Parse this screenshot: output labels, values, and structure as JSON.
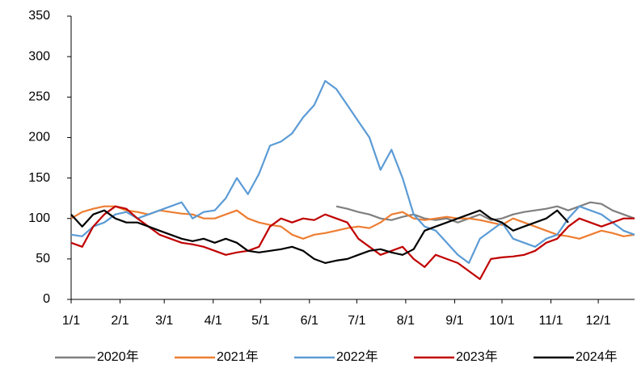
{
  "chart_data": {
    "type": "line",
    "x": [
      0,
      7,
      14,
      21,
      28,
      35,
      42,
      49,
      56,
      63,
      70,
      77,
      84,
      91,
      98,
      105,
      112,
      119,
      126,
      133,
      140,
      147,
      154,
      161,
      168,
      175,
      182,
      189,
      196,
      203,
      210,
      217,
      224,
      231,
      238,
      245,
      252,
      259,
      266,
      273,
      280,
      287,
      294,
      301,
      308,
      315,
      322,
      329,
      336,
      343,
      350,
      357
    ],
    "xlim": [
      0,
      357
    ],
    "xticks": [
      {
        "value": 0,
        "label": "1/1"
      },
      {
        "value": 31,
        "label": "2/1"
      },
      {
        "value": 59,
        "label": "3/1"
      },
      {
        "value": 90,
        "label": "4/1"
      },
      {
        "value": 120,
        "label": "5/1"
      },
      {
        "value": 151,
        "label": "6/1"
      },
      {
        "value": 181,
        "label": "7/1"
      },
      {
        "value": 212,
        "label": "8/1"
      },
      {
        "value": 243,
        "label": "9/1"
      },
      {
        "value": 273,
        "label": "10/1"
      },
      {
        "value": 304,
        "label": "11/1"
      },
      {
        "value": 334,
        "label": "12/1"
      }
    ],
    "ylim": [
      0,
      350
    ],
    "yticks": [
      0,
      50,
      100,
      150,
      200,
      250,
      300,
      350
    ],
    "series": [
      {
        "name": "2020年",
        "color": "#7f7f7f",
        "values": [
          null,
          null,
          null,
          null,
          null,
          null,
          null,
          null,
          null,
          null,
          null,
          null,
          null,
          null,
          null,
          null,
          null,
          null,
          null,
          null,
          null,
          null,
          null,
          null,
          115,
          112,
          108,
          105,
          100,
          98,
          102,
          105,
          100,
          98,
          100,
          95,
          100,
          105,
          98,
          100,
          105,
          108,
          110,
          112,
          115,
          110,
          115,
          120,
          118,
          110,
          105,
          100
        ]
      },
      {
        "name": "2021年",
        "color": "#ed7d31",
        "values": [
          100,
          108,
          112,
          115,
          115,
          110,
          108,
          105,
          110,
          108,
          106,
          105,
          100,
          100,
          105,
          110,
          100,
          95,
          92,
          90,
          80,
          75,
          80,
          82,
          85,
          88,
          90,
          88,
          95,
          105,
          108,
          100,
          98,
          100,
          102,
          100,
          100,
          98,
          95,
          92,
          100,
          95,
          90,
          85,
          80,
          78,
          75,
          80,
          85,
          82,
          78,
          80
        ]
      },
      {
        "name": "2022年",
        "color": "#5b9bd5",
        "values": [
          80,
          78,
          90,
          95,
          105,
          108,
          100,
          105,
          110,
          115,
          120,
          100,
          108,
          110,
          125,
          150,
          130,
          155,
          190,
          195,
          205,
          225,
          240,
          270,
          260,
          240,
          220,
          200,
          160,
          185,
          150,
          105,
          90,
          85,
          70,
          55,
          45,
          75,
          85,
          95,
          75,
          70,
          65,
          75,
          80,
          100,
          115,
          110,
          105,
          95,
          85,
          80
        ]
      },
      {
        "name": "2023年",
        "color": "#c00000",
        "values": [
          70,
          65,
          90,
          105,
          115,
          112,
          100,
          90,
          80,
          75,
          70,
          68,
          65,
          60,
          55,
          58,
          60,
          65,
          90,
          100,
          95,
          100,
          98,
          105,
          100,
          95,
          75,
          65,
          55,
          60,
          65,
          50,
          40,
          55,
          50,
          45,
          35,
          25,
          50,
          52,
          53,
          55,
          60,
          70,
          75,
          90,
          100,
          95,
          90,
          95,
          100,
          100
        ]
      },
      {
        "name": "2024年",
        "color": "#000000",
        "values": [
          105,
          90,
          105,
          110,
          100,
          95,
          95,
          90,
          85,
          80,
          75,
          72,
          75,
          70,
          75,
          70,
          60,
          58,
          60,
          62,
          65,
          60,
          50,
          45,
          48,
          50,
          55,
          60,
          62,
          58,
          55,
          62,
          85,
          90,
          95,
          100,
          105,
          110,
          100,
          95,
          85,
          90,
          95,
          100,
          110,
          95,
          null,
          null,
          null,
          null,
          null,
          null
        ]
      }
    ]
  }
}
